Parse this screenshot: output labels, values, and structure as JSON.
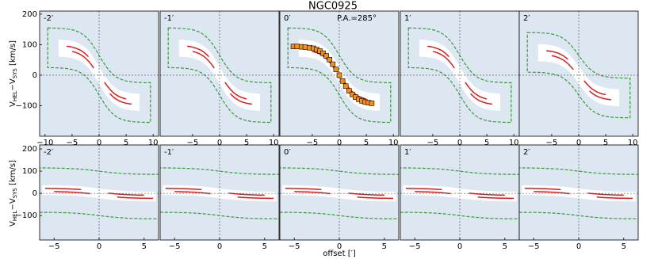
{
  "title": "NGC0925",
  "x_label": "offset [′]",
  "y_label": {
    "main": "V",
    "sub1": "HEL",
    "mid": "−V",
    "sub2": "SYS",
    "unit": " [km/s]"
  },
  "chart_data": [
    {
      "type": "pv",
      "label": "-2′",
      "xlim": [
        -11,
        11
      ],
      "ylim": [
        -200,
        210
      ],
      "xticks": [
        {
          "value": -10,
          "label": "−10"
        },
        {
          "value": -5,
          "label": "−5"
        },
        0,
        5,
        10
      ],
      "yticks": [
        200,
        100,
        0,
        {
          "value": -100,
          "label": "−100"
        }
      ]
    },
    {
      "type": "pv",
      "label": "-1′",
      "xlim": [
        -11,
        11
      ],
      "ylim": [
        -200,
        210
      ],
      "xticks": [
        {
          "value": -5,
          "label": "−5"
        },
        0,
        5,
        10
      ]
    },
    {
      "type": "pv",
      "label": "0′",
      "annotation": "P.A.=285°",
      "xlim": [
        -11,
        11
      ],
      "ylim": [
        -200,
        210
      ],
      "xticks": [
        {
          "value": -5,
          "label": "−5"
        },
        0,
        5,
        10
      ],
      "points": {
        "color": "#f0901e",
        "x": [
          -8.5,
          -7.8,
          -7,
          -6.3,
          -5.5,
          -4.8,
          -4.2,
          -3.6,
          -3,
          -2.4,
          -1.8,
          -1.2,
          -0.6,
          0,
          0.6,
          1.2,
          1.8,
          2.4,
          3,
          3.6,
          4.2,
          4.8,
          5.4,
          6
        ],
        "y": [
          94,
          94,
          93,
          92,
          90,
          88,
          84,
          79,
          72,
          63,
          51,
          36,
          19,
          0,
          -19,
          -36,
          -51,
          -63,
          -72,
          -79,
          -84,
          -88,
          -90,
          -92
        ]
      }
    },
    {
      "type": "pv",
      "label": "1′",
      "xlim": [
        -11,
        11
      ],
      "ylim": [
        -200,
        210
      ],
      "xticks": [
        {
          "value": -5,
          "label": "−5"
        },
        0,
        5,
        10
      ]
    },
    {
      "type": "pv",
      "label": "2′",
      "xlim": [
        -11,
        11
      ],
      "ylim": [
        -200,
        210
      ],
      "xticks": [
        {
          "value": -5,
          "label": "−5"
        },
        0,
        5,
        10
      ]
    },
    {
      "type": "pv",
      "label": "-2′",
      "xlim": [
        -6.6,
        6.6
      ],
      "ylim": [
        -210,
        218
      ],
      "xticks": [
        {
          "value": -5,
          "label": "−5"
        },
        0,
        5
      ],
      "yticks": [
        200,
        100,
        0,
        {
          "value": -100,
          "label": "−100"
        }
      ]
    },
    {
      "type": "pv",
      "label": "-1′",
      "xlim": [
        -6.6,
        6.6
      ],
      "ylim": [
        -210,
        218
      ],
      "xticks": [
        {
          "value": -5,
          "label": "−5"
        },
        0,
        5
      ]
    },
    {
      "type": "pv",
      "label": "0′",
      "xlim": [
        -6.6,
        6.6
      ],
      "ylim": [
        -210,
        218
      ],
      "xticks": [
        {
          "value": -5,
          "label": "−5"
        },
        0,
        5
      ]
    },
    {
      "type": "pv",
      "label": "1′",
      "xlim": [
        -6.6,
        6.6
      ],
      "ylim": [
        -210,
        218
      ],
      "xticks": [
        {
          "value": -5,
          "label": "−5"
        },
        0,
        5
      ]
    },
    {
      "type": "pv",
      "label": "2′",
      "xlim": [
        -6.6,
        6.6
      ],
      "ylim": [
        -210,
        218
      ],
      "xticks": [
        {
          "value": -5,
          "label": "−5"
        },
        0,
        5
      ]
    }
  ]
}
